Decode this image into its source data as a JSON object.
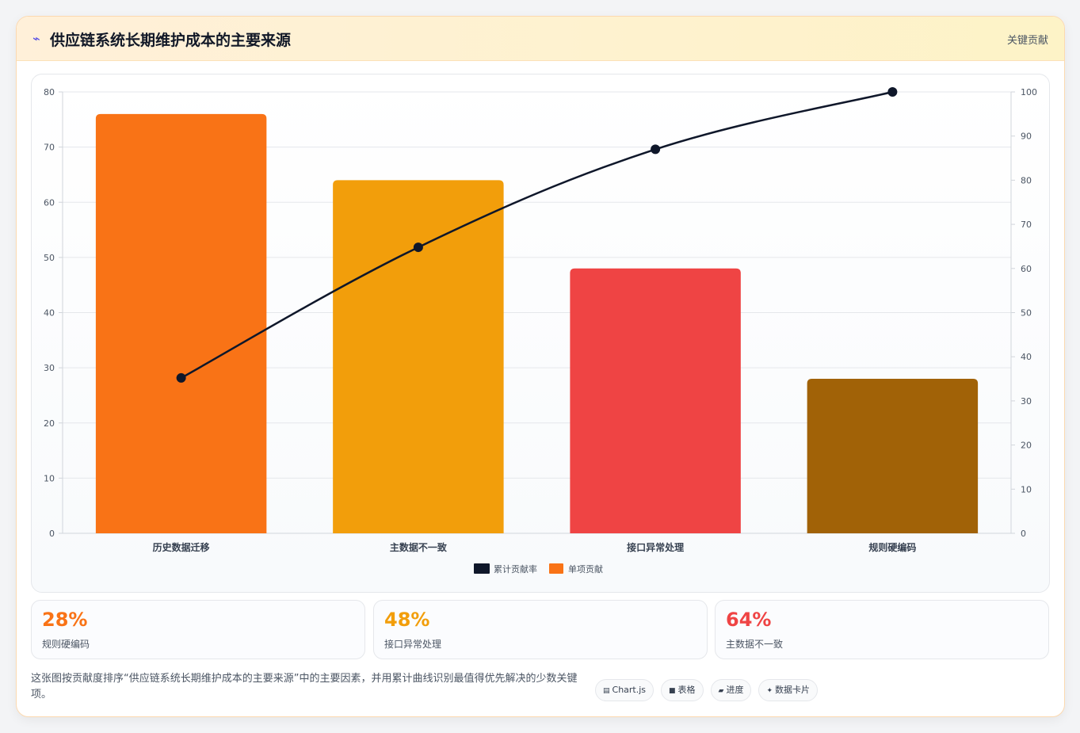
{
  "header": {
    "icon": "lightning-icon",
    "icon_glyph": "⌁",
    "title": "供应链系统长期维护成本的主要来源",
    "badge": "关键贡献"
  },
  "chart_data": {
    "type": "bar",
    "categories": [
      "历史数据迁移",
      "主数据不一致",
      "接口异常处理",
      "规则硬编码"
    ],
    "series": [
      {
        "name": "单项贡献",
        "type": "bar",
        "axis": "left",
        "values": [
          76,
          64,
          48,
          28
        ],
        "colors": [
          "#f97316",
          "#f29e0b",
          "#ef4444",
          "#a16207"
        ],
        "legend_color": "#f97316"
      },
      {
        "name": "累计贡献率",
        "type": "line",
        "axis": "right",
        "values": [
          35.2,
          64.8,
          87.0,
          100
        ],
        "color": "#0f172a"
      }
    ],
    "y_left": {
      "min": 0,
      "max": 80,
      "ticks": [
        "0",
        "10",
        "20",
        "30",
        "40",
        "50",
        "60",
        "70",
        "80"
      ]
    },
    "y_right": {
      "min": 0,
      "max": 100,
      "ticks": [
        "0",
        "10",
        "20",
        "30",
        "40",
        "50",
        "60",
        "70",
        "80",
        "90",
        "100"
      ]
    },
    "grid": true,
    "legend_position": "bottom"
  },
  "kpis": [
    {
      "value": "28%",
      "label": "规则硬编码",
      "color": "#f97316"
    },
    {
      "value": "48%",
      "label": "接口异常处理",
      "color": "#f29e0b"
    },
    {
      "value": "64%",
      "label": "主数据不一致",
      "color": "#ef4444"
    }
  ],
  "footer": {
    "description": "这张图按贡献度排序“供应链系统长期维护成本的主要来源”中的主要因素，并用累计曲线识别最值得优先解决的少数关键项。",
    "tags": [
      {
        "icon": "chart-icon",
        "glyph": "▤",
        "label": "Chart.js"
      },
      {
        "icon": "table-icon",
        "glyph": "■",
        "label": "表格"
      },
      {
        "icon": "progress-icon",
        "glyph": "▰",
        "label": "进度"
      },
      {
        "icon": "sparkle-icon",
        "glyph": "✦",
        "label": "数据卡片"
      }
    ]
  }
}
